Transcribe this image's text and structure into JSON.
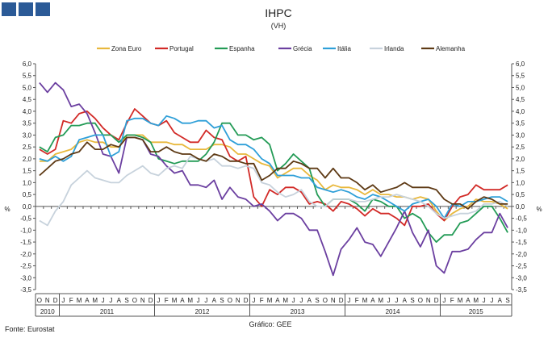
{
  "header": {
    "logo_name": "gee-logo-blocks",
    "logo_color": "#2b5a97"
  },
  "footer": {
    "source": "Fonte: Eurostat",
    "credit": "Gráfico: GEE"
  },
  "chart_data": {
    "type": "line",
    "title": "IHPC",
    "subtitle": "(VH)",
    "ylabel": "%",
    "ylabel_right": "%",
    "ylim": [
      -3.5,
      6.0
    ],
    "ytick_step": 0.5,
    "grid": false,
    "legend_position": "top",
    "month_labels": [
      "O",
      "N",
      "D",
      "J",
      "F",
      "M",
      "A",
      "M",
      "J",
      "J",
      "A",
      "S",
      "O",
      "N",
      "D",
      "J",
      "F",
      "M",
      "A",
      "M",
      "J",
      "J",
      "A",
      "S",
      "O",
      "N",
      "D",
      "J",
      "F",
      "M",
      "A",
      "M",
      "J",
      "J",
      "A",
      "S",
      "O",
      "N",
      "D",
      "J",
      "F",
      "M",
      "A",
      "M",
      "J",
      "J",
      "A",
      "S",
      "O",
      "N",
      "D",
      "J",
      "F",
      "M",
      "A",
      "M",
      "J",
      "J",
      "A",
      "S"
    ],
    "year_groups": [
      {
        "label": "2010",
        "start": 0,
        "count": 3
      },
      {
        "label": "2011",
        "start": 3,
        "count": 12
      },
      {
        "label": "2012",
        "start": 15,
        "count": 12
      },
      {
        "label": "2013",
        "start": 27,
        "count": 12
      },
      {
        "label": "2014",
        "start": 39,
        "count": 12
      },
      {
        "label": "2015",
        "start": 51,
        "count": 9
      }
    ],
    "series": [
      {
        "name": "Zona Euro",
        "color": "#e8b83c",
        "values": [
          1.9,
          1.9,
          2.2,
          2.3,
          2.4,
          2.7,
          2.8,
          2.7,
          2.7,
          2.5,
          2.5,
          3.0,
          3.0,
          3.0,
          2.7,
          2.7,
          2.7,
          2.6,
          2.6,
          2.4,
          2.4,
          2.4,
          2.6,
          2.6,
          2.5,
          2.2,
          2.2,
          2.0,
          1.8,
          1.7,
          1.2,
          1.4,
          1.6,
          1.6,
          1.3,
          1.1,
          0.7,
          0.9,
          0.8,
          0.8,
          0.7,
          0.5,
          0.7,
          0.5,
          0.5,
          0.4,
          0.4,
          0.3,
          0.4,
          0.3,
          -0.2,
          -0.6,
          -0.3,
          -0.1,
          0.0,
          0.3,
          0.2,
          0.2,
          0.1,
          -0.1
        ]
      },
      {
        "name": "Portugal",
        "color": "#d22a27",
        "values": [
          2.4,
          2.2,
          2.4,
          3.6,
          3.5,
          3.9,
          4.0,
          3.7,
          3.3,
          3.0,
          2.8,
          3.5,
          4.1,
          3.8,
          3.5,
          3.4,
          3.6,
          3.1,
          2.9,
          2.7,
          2.7,
          3.2,
          2.9,
          2.8,
          2.1,
          1.9,
          2.1,
          0.4,
          0.0,
          0.7,
          0.5,
          0.8,
          0.8,
          0.6,
          0.1,
          0.2,
          0.1,
          -0.2,
          0.2,
          0.1,
          -0.1,
          -0.4,
          -0.1,
          -0.3,
          -0.3,
          -0.5,
          -0.8,
          0.0,
          0.0,
          0.1,
          -0.3,
          -0.6,
          0.0,
          0.4,
          0.5,
          0.9,
          0.7,
          0.7,
          0.7,
          0.9
        ]
      },
      {
        "name": "Espanha",
        "color": "#239b56",
        "values": [
          2.5,
          2.3,
          2.9,
          3.0,
          3.4,
          3.4,
          3.5,
          3.5,
          3.0,
          3.0,
          2.7,
          3.0,
          3.0,
          2.9,
          2.7,
          2.0,
          1.9,
          1.8,
          1.9,
          1.9,
          1.9,
          2.2,
          2.7,
          3.5,
          3.5,
          3.0,
          3.0,
          2.8,
          2.9,
          2.6,
          1.5,
          1.8,
          2.2,
          1.9,
          1.6,
          0.5,
          0.0,
          0.3,
          0.3,
          0.3,
          0.1,
          -0.2,
          0.3,
          0.2,
          0.0,
          0.0,
          -0.5,
          -0.3,
          -0.5,
          -1.1,
          -1.5,
          -1.2,
          -1.2,
          -0.7,
          -0.6,
          -0.3,
          0.0,
          0.0,
          -0.5,
          -1.1
        ]
      },
      {
        "name": "Grécia",
        "color": "#6b3fa0",
        "values": [
          5.2,
          4.8,
          5.2,
          4.9,
          4.2,
          4.3,
          3.9,
          3.1,
          2.2,
          2.1,
          1.4,
          2.9,
          2.9,
          2.8,
          2.2,
          2.1,
          1.7,
          1.4,
          1.5,
          0.9,
          0.9,
          0.8,
          1.1,
          0.3,
          0.8,
          0.4,
          0.3,
          0.0,
          0.1,
          -0.2,
          -0.6,
          -0.3,
          -0.3,
          -0.5,
          -1.0,
          -1.0,
          -1.9,
          -2.9,
          -1.8,
          -1.4,
          -0.9,
          -1.5,
          -1.6,
          -2.1,
          -1.5,
          -0.9,
          -0.2,
          -1.1,
          -1.7,
          -1.0,
          -2.5,
          -2.8,
          -1.9,
          -1.9,
          -1.8,
          -1.4,
          -1.1,
          -1.1,
          -0.3,
          -0.9
        ]
      },
      {
        "name": "Itália",
        "color": "#2e9fd8",
        "values": [
          2.0,
          1.9,
          2.1,
          1.9,
          2.1,
          2.8,
          2.9,
          3.0,
          3.0,
          2.1,
          2.3,
          3.6,
          3.7,
          3.7,
          3.5,
          3.4,
          3.8,
          3.7,
          3.5,
          3.5,
          3.6,
          3.6,
          3.3,
          3.4,
          2.8,
          2.6,
          2.6,
          2.4,
          2.0,
          1.8,
          1.3,
          1.3,
          1.3,
          1.2,
          1.2,
          0.8,
          0.7,
          0.6,
          0.7,
          0.6,
          0.4,
          0.3,
          0.5,
          0.4,
          0.2,
          0.0,
          -0.2,
          0.1,
          0.2,
          0.3,
          0.0,
          -0.5,
          0.1,
          0.0,
          0.2,
          0.2,
          0.3,
          0.4,
          0.4,
          0.2
        ]
      },
      {
        "name": "Irlanda",
        "color": "#c7d2dc",
        "values": [
          -0.6,
          -0.8,
          -0.2,
          0.2,
          0.9,
          1.2,
          1.5,
          1.2,
          1.1,
          1.0,
          1.0,
          1.3,
          1.5,
          1.7,
          1.4,
          1.3,
          1.6,
          1.7,
          1.6,
          2.1,
          2.0,
          1.9,
          2.0,
          1.7,
          1.7,
          1.6,
          1.7,
          1.6,
          1.0,
          0.9,
          0.6,
          0.4,
          0.5,
          0.7,
          0.2,
          0.0,
          0.0,
          0.3,
          0.3,
          0.3,
          0.2,
          0.2,
          0.3,
          0.4,
          0.4,
          0.5,
          0.4,
          0.3,
          0.2,
          0.0,
          -0.3,
          -0.5,
          -0.4,
          -0.3,
          -0.3,
          -0.2,
          0.1,
          0.1,
          0.2,
          0.0
        ]
      },
      {
        "name": "Alemanha",
        "color": "#5e3a15",
        "values": [
          1.3,
          1.6,
          1.9,
          2.0,
          2.2,
          2.3,
          2.7,
          2.4,
          2.4,
          2.6,
          2.5,
          2.9,
          2.9,
          2.8,
          2.3,
          2.3,
          2.5,
          2.3,
          2.2,
          2.2,
          2.0,
          1.9,
          2.2,
          2.1,
          1.9,
          1.9,
          1.8,
          1.8,
          1.1,
          1.3,
          1.6,
          1.6,
          1.9,
          1.8,
          1.6,
          1.6,
          1.2,
          1.6,
          1.2,
          1.2,
          1.0,
          0.7,
          0.9,
          0.6,
          0.7,
          0.8,
          1.0,
          0.8,
          0.8,
          0.8,
          0.7,
          0.3,
          0.1,
          0.1,
          -0.1,
          0.2,
          0.4,
          0.3,
          0.1,
          0.1
        ]
      }
    ]
  }
}
